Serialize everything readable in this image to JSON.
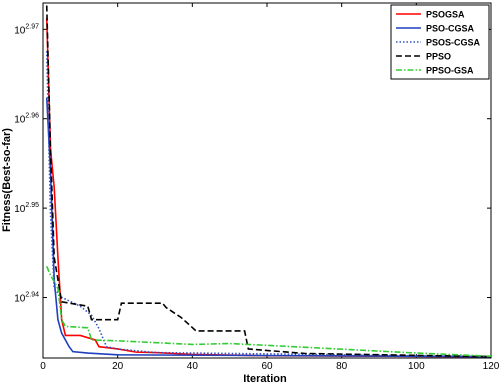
{
  "chart_data": {
    "type": "line",
    "xlabel": "Iteration",
    "ylabel": "Fitness(Best-so-far)",
    "xlim": [
      0,
      120
    ],
    "xticks": [
      0,
      20,
      40,
      60,
      80,
      100,
      120
    ],
    "ylim": [
      857.5,
      939.6
    ],
    "yscale": "log",
    "yticks": [
      {
        "value": 870.96,
        "label": "10",
        "exponent": "2.94"
      },
      {
        "value": 891.25,
        "label": "10",
        "exponent": "2.95"
      },
      {
        "value": 912.01,
        "label": "10",
        "exponent": "2.96"
      },
      {
        "value": 933.25,
        "label": "10",
        "exponent": "2.97"
      }
    ],
    "grid": false,
    "legend": "upper right",
    "series": [
      {
        "name": "PSOGSA",
        "color": "#ff0000",
        "linestyle": "solid",
        "x": [
          1,
          2,
          3,
          4,
          5,
          6,
          10,
          14,
          15,
          20,
          25,
          30,
          40,
          60,
          120
        ],
        "values": [
          936,
          905,
          896,
          880,
          866,
          862.5,
          862.5,
          861.5,
          860,
          859.5,
          858.8,
          858.7,
          858.3,
          858,
          857.8
        ]
      },
      {
        "name": "PSO-CGSA",
        "color": "#1f3fbf",
        "linestyle": "solid",
        "x": [
          1,
          2,
          3,
          4,
          5,
          7,
          8,
          12,
          20,
          120
        ],
        "values": [
          917,
          900,
          875,
          866,
          863,
          860,
          858.9,
          858.6,
          858.2,
          857.8
        ]
      },
      {
        "name": "PSOS-CGSA",
        "color": "#3050c0",
        "linestyle": "dotted",
        "x": [
          1,
          2,
          3,
          5,
          10,
          13,
          15,
          17,
          20,
          30,
          120
        ],
        "values": [
          928,
          890,
          873,
          871,
          869,
          867,
          864,
          860,
          859.5,
          858.7,
          857.8
        ]
      },
      {
        "name": "PPSO",
        "color": "#000000",
        "linestyle": "dashed",
        "x": [
          1,
          2,
          3,
          5,
          12,
          13,
          20,
          21,
          32,
          33,
          37,
          41,
          54,
          55,
          70,
          120
        ],
        "values": [
          939,
          905,
          880,
          870,
          869,
          866,
          866,
          869.7,
          869.7,
          868.7,
          866.5,
          863.5,
          863.5,
          859.5,
          858.5,
          857.8
        ]
      },
      {
        "name": "PPSO-GSA",
        "color": "#33cc33",
        "linestyle": "dashdot",
        "x": [
          1,
          2,
          4,
          5,
          6,
          12,
          13,
          20,
          40,
          50,
          60,
          100,
          120
        ],
        "values": [
          878,
          876,
          873,
          866,
          864.5,
          864.2,
          861.5,
          861.3,
          860.5,
          860.7,
          860.3,
          858.6,
          857.9
        ]
      }
    ]
  }
}
